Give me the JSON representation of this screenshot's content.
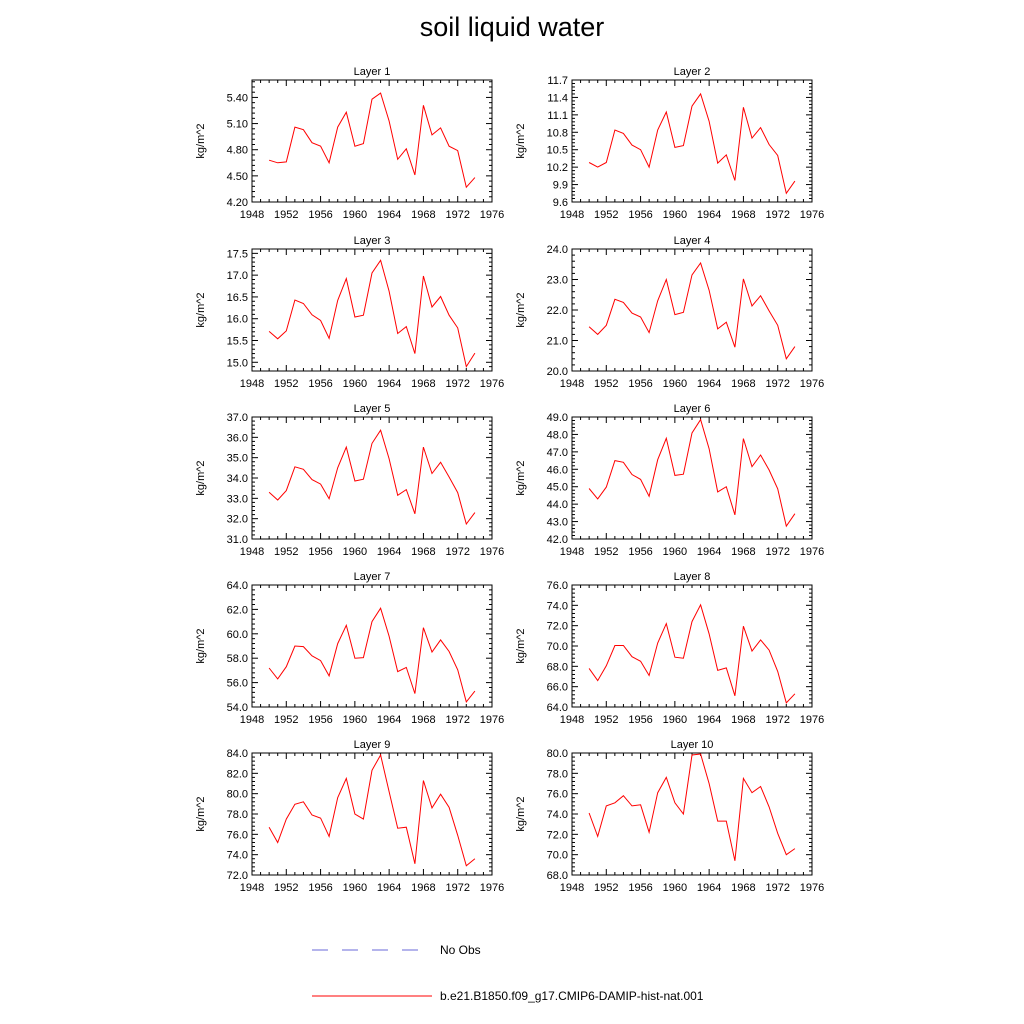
{
  "title": "soil liquid water",
  "legend": [
    {
      "label": "No Obs",
      "color": "#6a6ad8",
      "dashed": true
    },
    {
      "label": "b.e21.B1850.f09_g17.CMIP6-DAMIP-hist-nat.001",
      "color": "#ff0000",
      "dashed": false
    }
  ],
  "chart_data": [
    {
      "type": "line",
      "title": "Layer 1",
      "ylabel": "kg/m^2",
      "xlim": [
        1948,
        1976
      ],
      "xticks": [
        "1948",
        "1952",
        "1956",
        "1960",
        "1964",
        "1968",
        "1972",
        "1976"
      ],
      "ylim": [
        4.2,
        5.6
      ],
      "yticks": [
        "4.20",
        "4.50",
        "4.80",
        "5.10",
        "5.40"
      ],
      "x": [
        1950,
        1951,
        1952,
        1953,
        1954,
        1955,
        1956,
        1957,
        1958,
        1959,
        1960,
        1961,
        1962,
        1963,
        1964,
        1965,
        1966,
        1967,
        1968,
        1969,
        1970,
        1971,
        1972,
        1973,
        1974
      ],
      "series": [
        {
          "name": "b.e21.B1850.f09_g17.CMIP6-DAMIP-hist-nat.001",
          "color": "#ff0000",
          "values": [
            4.68,
            4.65,
            4.66,
            5.06,
            5.03,
            4.88,
            4.84,
            4.65,
            5.06,
            5.23,
            4.84,
            4.87,
            5.38,
            5.45,
            5.13,
            4.69,
            4.81,
            4.51,
            5.31,
            4.97,
            5.05,
            4.84,
            4.79,
            4.37,
            4.48
          ]
        }
      ]
    },
    {
      "type": "line",
      "title": "Layer 2",
      "ylabel": "kg/m^2",
      "xlim": [
        1948,
        1976
      ],
      "xticks": [
        "1948",
        "1952",
        "1956",
        "1960",
        "1964",
        "1968",
        "1972",
        "1976"
      ],
      "ylim": [
        9.6,
        11.7
      ],
      "yticks": [
        "9.6",
        "9.9",
        "10.2",
        "10.5",
        "10.8",
        "11.1",
        "11.4",
        "11.7"
      ],
      "x": [
        1950,
        1951,
        1952,
        1953,
        1954,
        1955,
        1956,
        1957,
        1958,
        1959,
        1960,
        1961,
        1962,
        1963,
        1964,
        1965,
        1966,
        1967,
        1968,
        1969,
        1970,
        1971,
        1972,
        1973,
        1974
      ],
      "series": [
        {
          "name": "b.e21.B1850.f09_g17.CMIP6-DAMIP-hist-nat.001",
          "color": "#ff0000",
          "values": [
            10.28,
            10.2,
            10.28,
            10.84,
            10.78,
            10.58,
            10.5,
            10.2,
            10.84,
            11.15,
            10.54,
            10.57,
            11.25,
            11.46,
            10.99,
            10.27,
            10.41,
            9.97,
            11.23,
            10.7,
            10.88,
            10.59,
            10.4,
            9.75,
            9.96
          ]
        }
      ]
    },
    {
      "type": "line",
      "title": "Layer 3",
      "ylabel": "kg/m^2",
      "xlim": [
        1948,
        1976
      ],
      "xticks": [
        "1948",
        "1952",
        "1956",
        "1960",
        "1964",
        "1968",
        "1972",
        "1976"
      ],
      "ylim": [
        14.8,
        17.6
      ],
      "yticks": [
        "15.0",
        "15.5",
        "16.0",
        "16.5",
        "17.0",
        "17.5"
      ],
      "x": [
        1950,
        1951,
        1952,
        1953,
        1954,
        1955,
        1956,
        1957,
        1958,
        1959,
        1960,
        1961,
        1962,
        1963,
        1964,
        1965,
        1966,
        1967,
        1968,
        1969,
        1970,
        1971,
        1972,
        1973,
        1974
      ],
      "series": [
        {
          "name": "b.e21.B1850.f09_g17.CMIP6-DAMIP-hist-nat.001",
          "color": "#ff0000",
          "values": [
            15.71,
            15.54,
            15.72,
            16.43,
            16.35,
            16.09,
            15.96,
            15.55,
            16.42,
            16.92,
            16.04,
            16.08,
            17.05,
            17.34,
            16.63,
            15.66,
            15.82,
            15.2,
            16.98,
            16.27,
            16.51,
            16.08,
            15.79,
            14.9,
            15.21
          ]
        }
      ]
    },
    {
      "type": "line",
      "title": "Layer 4",
      "ylabel": "kg/m^2",
      "xlim": [
        1948,
        1976
      ],
      "xticks": [
        "1948",
        "1952",
        "1956",
        "1960",
        "1964",
        "1968",
        "1972",
        "1976"
      ],
      "ylim": [
        20.0,
        24.0
      ],
      "yticks": [
        "20.0",
        "21.0",
        "22.0",
        "23.0",
        "24.0"
      ],
      "x": [
        1950,
        1951,
        1952,
        1953,
        1954,
        1955,
        1956,
        1957,
        1958,
        1959,
        1960,
        1961,
        1962,
        1963,
        1964,
        1965,
        1966,
        1967,
        1968,
        1969,
        1970,
        1971,
        1972,
        1973,
        1974
      ],
      "series": [
        {
          "name": "b.e21.B1850.f09_g17.CMIP6-DAMIP-hist-nat.001",
          "color": "#ff0000",
          "values": [
            21.45,
            21.2,
            21.5,
            22.35,
            22.25,
            21.9,
            21.77,
            21.26,
            22.3,
            23.0,
            21.85,
            21.92,
            23.15,
            23.54,
            22.65,
            21.38,
            21.6,
            20.78,
            23.02,
            22.13,
            22.47,
            21.97,
            21.5,
            20.4,
            20.8
          ]
        }
      ]
    },
    {
      "type": "line",
      "title": "Layer 5",
      "ylabel": "kg/m^2",
      "xlim": [
        1948,
        1976
      ],
      "xticks": [
        "1948",
        "1952",
        "1956",
        "1960",
        "1964",
        "1968",
        "1972",
        "1976"
      ],
      "ylim": [
        31.0,
        37.0
      ],
      "yticks": [
        "31.0",
        "32.0",
        "33.0",
        "34.0",
        "35.0",
        "36.0",
        "37.0"
      ],
      "x": [
        1950,
        1951,
        1952,
        1953,
        1954,
        1955,
        1956,
        1957,
        1958,
        1959,
        1960,
        1961,
        1962,
        1963,
        1964,
        1965,
        1966,
        1967,
        1968,
        1969,
        1970,
        1971,
        1972,
        1973,
        1974
      ],
      "series": [
        {
          "name": "b.e21.B1850.f09_g17.CMIP6-DAMIP-hist-nat.001",
          "color": "#ff0000",
          "values": [
            33.3,
            32.92,
            33.38,
            34.55,
            34.43,
            33.92,
            33.7,
            32.98,
            34.5,
            35.52,
            33.85,
            33.94,
            35.7,
            36.35,
            34.95,
            33.15,
            33.43,
            32.24,
            35.52,
            34.22,
            34.77,
            34.05,
            33.28,
            31.74,
            32.3
          ]
        }
      ]
    },
    {
      "type": "line",
      "title": "Layer 6",
      "ylabel": "kg/m^2",
      "xlim": [
        1948,
        1976
      ],
      "xticks": [
        "1948",
        "1952",
        "1956",
        "1960",
        "1964",
        "1968",
        "1972",
        "1976"
      ],
      "ylim": [
        42.0,
        49.0
      ],
      "yticks": [
        "42.0",
        "43.0",
        "44.0",
        "45.0",
        "46.0",
        "47.0",
        "48.0",
        "49.0"
      ],
      "x": [
        1950,
        1951,
        1952,
        1953,
        1954,
        1955,
        1956,
        1957,
        1958,
        1959,
        1960,
        1961,
        1962,
        1963,
        1964,
        1965,
        1966,
        1967,
        1968,
        1969,
        1970,
        1971,
        1972,
        1973,
        1974
      ],
      "series": [
        {
          "name": "b.e21.B1850.f09_g17.CMIP6-DAMIP-hist-nat.001",
          "color": "#ff0000",
          "values": [
            44.9,
            44.3,
            44.98,
            46.5,
            46.4,
            45.7,
            45.42,
            44.45,
            46.55,
            47.78,
            45.65,
            45.72,
            48.08,
            48.85,
            47.18,
            44.7,
            45.0,
            43.38,
            47.76,
            46.15,
            46.82,
            45.96,
            44.88,
            42.74,
            43.45
          ]
        }
      ]
    },
    {
      "type": "line",
      "title": "Layer 7",
      "ylabel": "kg/m^2",
      "xlim": [
        1948,
        1976
      ],
      "xticks": [
        "1948",
        "1952",
        "1956",
        "1960",
        "1964",
        "1968",
        "1972",
        "1976"
      ],
      "ylim": [
        54.0,
        64.0
      ],
      "yticks": [
        "54.0",
        "56.0",
        "58.0",
        "60.0",
        "62.0",
        "64.0"
      ],
      "x": [
        1950,
        1951,
        1952,
        1953,
        1954,
        1955,
        1956,
        1957,
        1958,
        1959,
        1960,
        1961,
        1962,
        1963,
        1964,
        1965,
        1966,
        1967,
        1968,
        1969,
        1970,
        1971,
        1972,
        1973,
        1974
      ],
      "series": [
        {
          "name": "b.e21.B1850.f09_g17.CMIP6-DAMIP-hist-nat.001",
          "color": "#ff0000",
          "values": [
            57.2,
            56.3,
            57.3,
            59.0,
            58.95,
            58.2,
            57.8,
            56.55,
            59.2,
            60.7,
            58.0,
            58.05,
            61.0,
            62.1,
            59.8,
            56.9,
            57.25,
            55.1,
            60.5,
            58.5,
            59.5,
            58.55,
            57.05,
            54.42,
            55.3
          ]
        }
      ]
    },
    {
      "type": "line",
      "title": "Layer 8",
      "ylabel": "kg/m^2",
      "xlim": [
        1948,
        1976
      ],
      "xticks": [
        "1948",
        "1952",
        "1956",
        "1960",
        "1964",
        "1968",
        "1972",
        "1976"
      ],
      "ylim": [
        64.0,
        76.0
      ],
      "yticks": [
        "64.0",
        "66.0",
        "68.0",
        "70.0",
        "72.0",
        "74.0",
        "76.0"
      ],
      "x": [
        1950,
        1951,
        1952,
        1953,
        1954,
        1955,
        1956,
        1957,
        1958,
        1959,
        1960,
        1961,
        1962,
        1963,
        1964,
        1965,
        1966,
        1967,
        1968,
        1969,
        1970,
        1971,
        1972,
        1973,
        1974
      ],
      "series": [
        {
          "name": "b.e21.B1850.f09_g17.CMIP6-DAMIP-hist-nat.001",
          "color": "#ff0000",
          "values": [
            67.8,
            66.6,
            68.05,
            70.05,
            70.05,
            68.95,
            68.5,
            67.1,
            70.3,
            72.2,
            68.9,
            68.8,
            72.4,
            74.05,
            71.2,
            67.6,
            67.85,
            65.1,
            71.95,
            69.5,
            70.6,
            69.6,
            67.5,
            64.4,
            65.3
          ]
        }
      ]
    },
    {
      "type": "line",
      "title": "Layer 9",
      "ylabel": "kg/m^2",
      "xlim": [
        1948,
        1976
      ],
      "xticks": [
        "1948",
        "1952",
        "1956",
        "1960",
        "1964",
        "1968",
        "1972",
        "1976"
      ],
      "ylim": [
        72.0,
        84.0
      ],
      "yticks": [
        "72.0",
        "74.0",
        "76.0",
        "78.0",
        "80.0",
        "82.0",
        "84.0"
      ],
      "x": [
        1950,
        1951,
        1952,
        1953,
        1954,
        1955,
        1956,
        1957,
        1958,
        1959,
        1960,
        1961,
        1962,
        1963,
        1964,
        1965,
        1966,
        1967,
        1968,
        1969,
        1970,
        1971,
        1972,
        1973,
        1974
      ],
      "series": [
        {
          "name": "b.e21.B1850.f09_g17.CMIP6-DAMIP-hist-nat.001",
          "color": "#ff0000",
          "values": [
            76.7,
            75.2,
            77.5,
            78.95,
            79.2,
            77.9,
            77.6,
            75.8,
            79.6,
            81.5,
            78.0,
            77.5,
            82.3,
            83.8,
            80.2,
            76.6,
            76.7,
            73.1,
            81.3,
            78.6,
            79.95,
            78.65,
            75.9,
            72.9,
            73.6
          ]
        }
      ]
    },
    {
      "type": "line",
      "title": "Layer 10",
      "ylabel": "kg/m^2",
      "xlim": [
        1948,
        1976
      ],
      "xticks": [
        "1948",
        "1952",
        "1956",
        "1960",
        "1964",
        "1968",
        "1972",
        "1976"
      ],
      "ylim": [
        68.0,
        80.0
      ],
      "yticks": [
        "68.0",
        "70.0",
        "72.0",
        "74.0",
        "76.0",
        "78.0",
        "80.0"
      ],
      "x": [
        1950,
        1951,
        1952,
        1953,
        1954,
        1955,
        1956,
        1957,
        1958,
        1959,
        1960,
        1961,
        1962,
        1963,
        1964,
        1965,
        1966,
        1967,
        1968,
        1969,
        1970,
        1971,
        1972,
        1973,
        1974
      ],
      "series": [
        {
          "name": "b.e21.B1850.f09_g17.CMIP6-DAMIP-hist-nat.001",
          "color": "#ff0000",
          "values": [
            74.1,
            71.8,
            74.8,
            75.1,
            75.8,
            74.8,
            74.9,
            72.2,
            76.1,
            77.6,
            75.1,
            74.0,
            79.8,
            79.9,
            77.0,
            73.3,
            73.3,
            69.4,
            77.5,
            76.1,
            76.7,
            74.7,
            72.1,
            70.0,
            70.6
          ]
        }
      ]
    }
  ]
}
